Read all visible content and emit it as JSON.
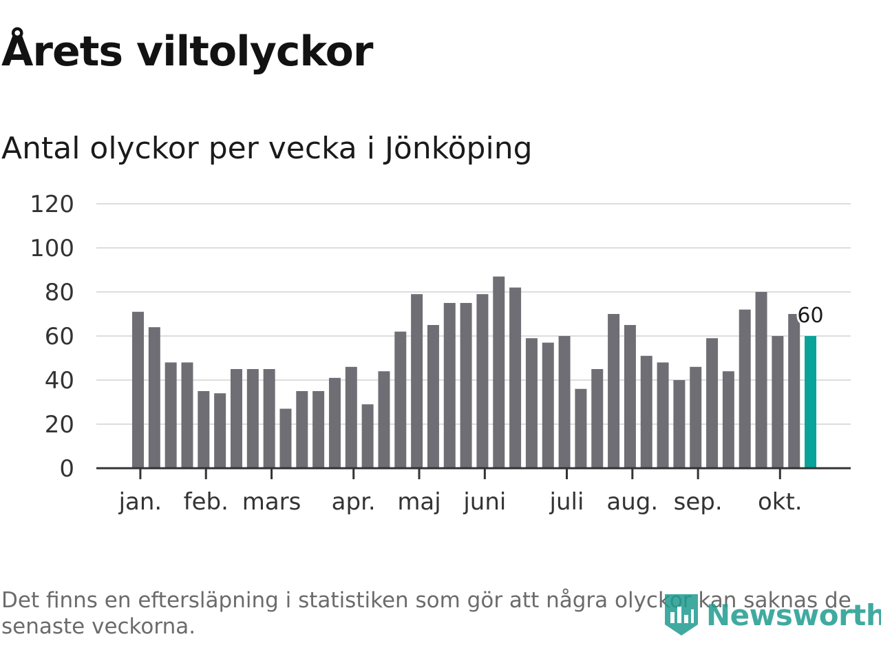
{
  "header": {
    "title": "Årets viltolyckor",
    "subtitle": "Antal olyckor per vecka i Jönköping"
  },
  "chart_data": {
    "type": "bar",
    "y_ticks": [
      0,
      20,
      40,
      60,
      80,
      100,
      120
    ],
    "ylim": [
      0,
      120
    ],
    "grid": true,
    "values": [
      71,
      64,
      48,
      48,
      35,
      34,
      45,
      45,
      45,
      27,
      35,
      35,
      41,
      46,
      29,
      44,
      62,
      79,
      65,
      75,
      75,
      79,
      87,
      82,
      59,
      57,
      60,
      36,
      45,
      70,
      65,
      51,
      48,
      40,
      46,
      59,
      44,
      72,
      80,
      60,
      70,
      60
    ],
    "month_labels": [
      {
        "label": "jan.",
        "week": 0.5
      },
      {
        "label": "feb.",
        "week": 4.5
      },
      {
        "label": "mars",
        "week": 8.5
      },
      {
        "label": "apr.",
        "week": 13.5
      },
      {
        "label": "maj",
        "week": 17.5
      },
      {
        "label": "juni",
        "week": 21.5
      },
      {
        "label": "juli",
        "week": 26.5
      },
      {
        "label": "aug.",
        "week": 30.5
      },
      {
        "label": "sep.",
        "week": 34.5
      },
      {
        "label": "okt.",
        "week": 39.5
      }
    ],
    "highlight_index": 41,
    "data_labels": [
      {
        "index": 41,
        "text": "60"
      }
    ],
    "colors": {
      "bar": "#6f6e74",
      "highlight": "#0aa39a",
      "grid": "#dddddd"
    }
  },
  "footer": {
    "note": "Det finns en eftersläpning i statistiken som gör att några olyckor kan saknas de senaste veckorna.",
    "logo_text": "Newsworthy"
  }
}
